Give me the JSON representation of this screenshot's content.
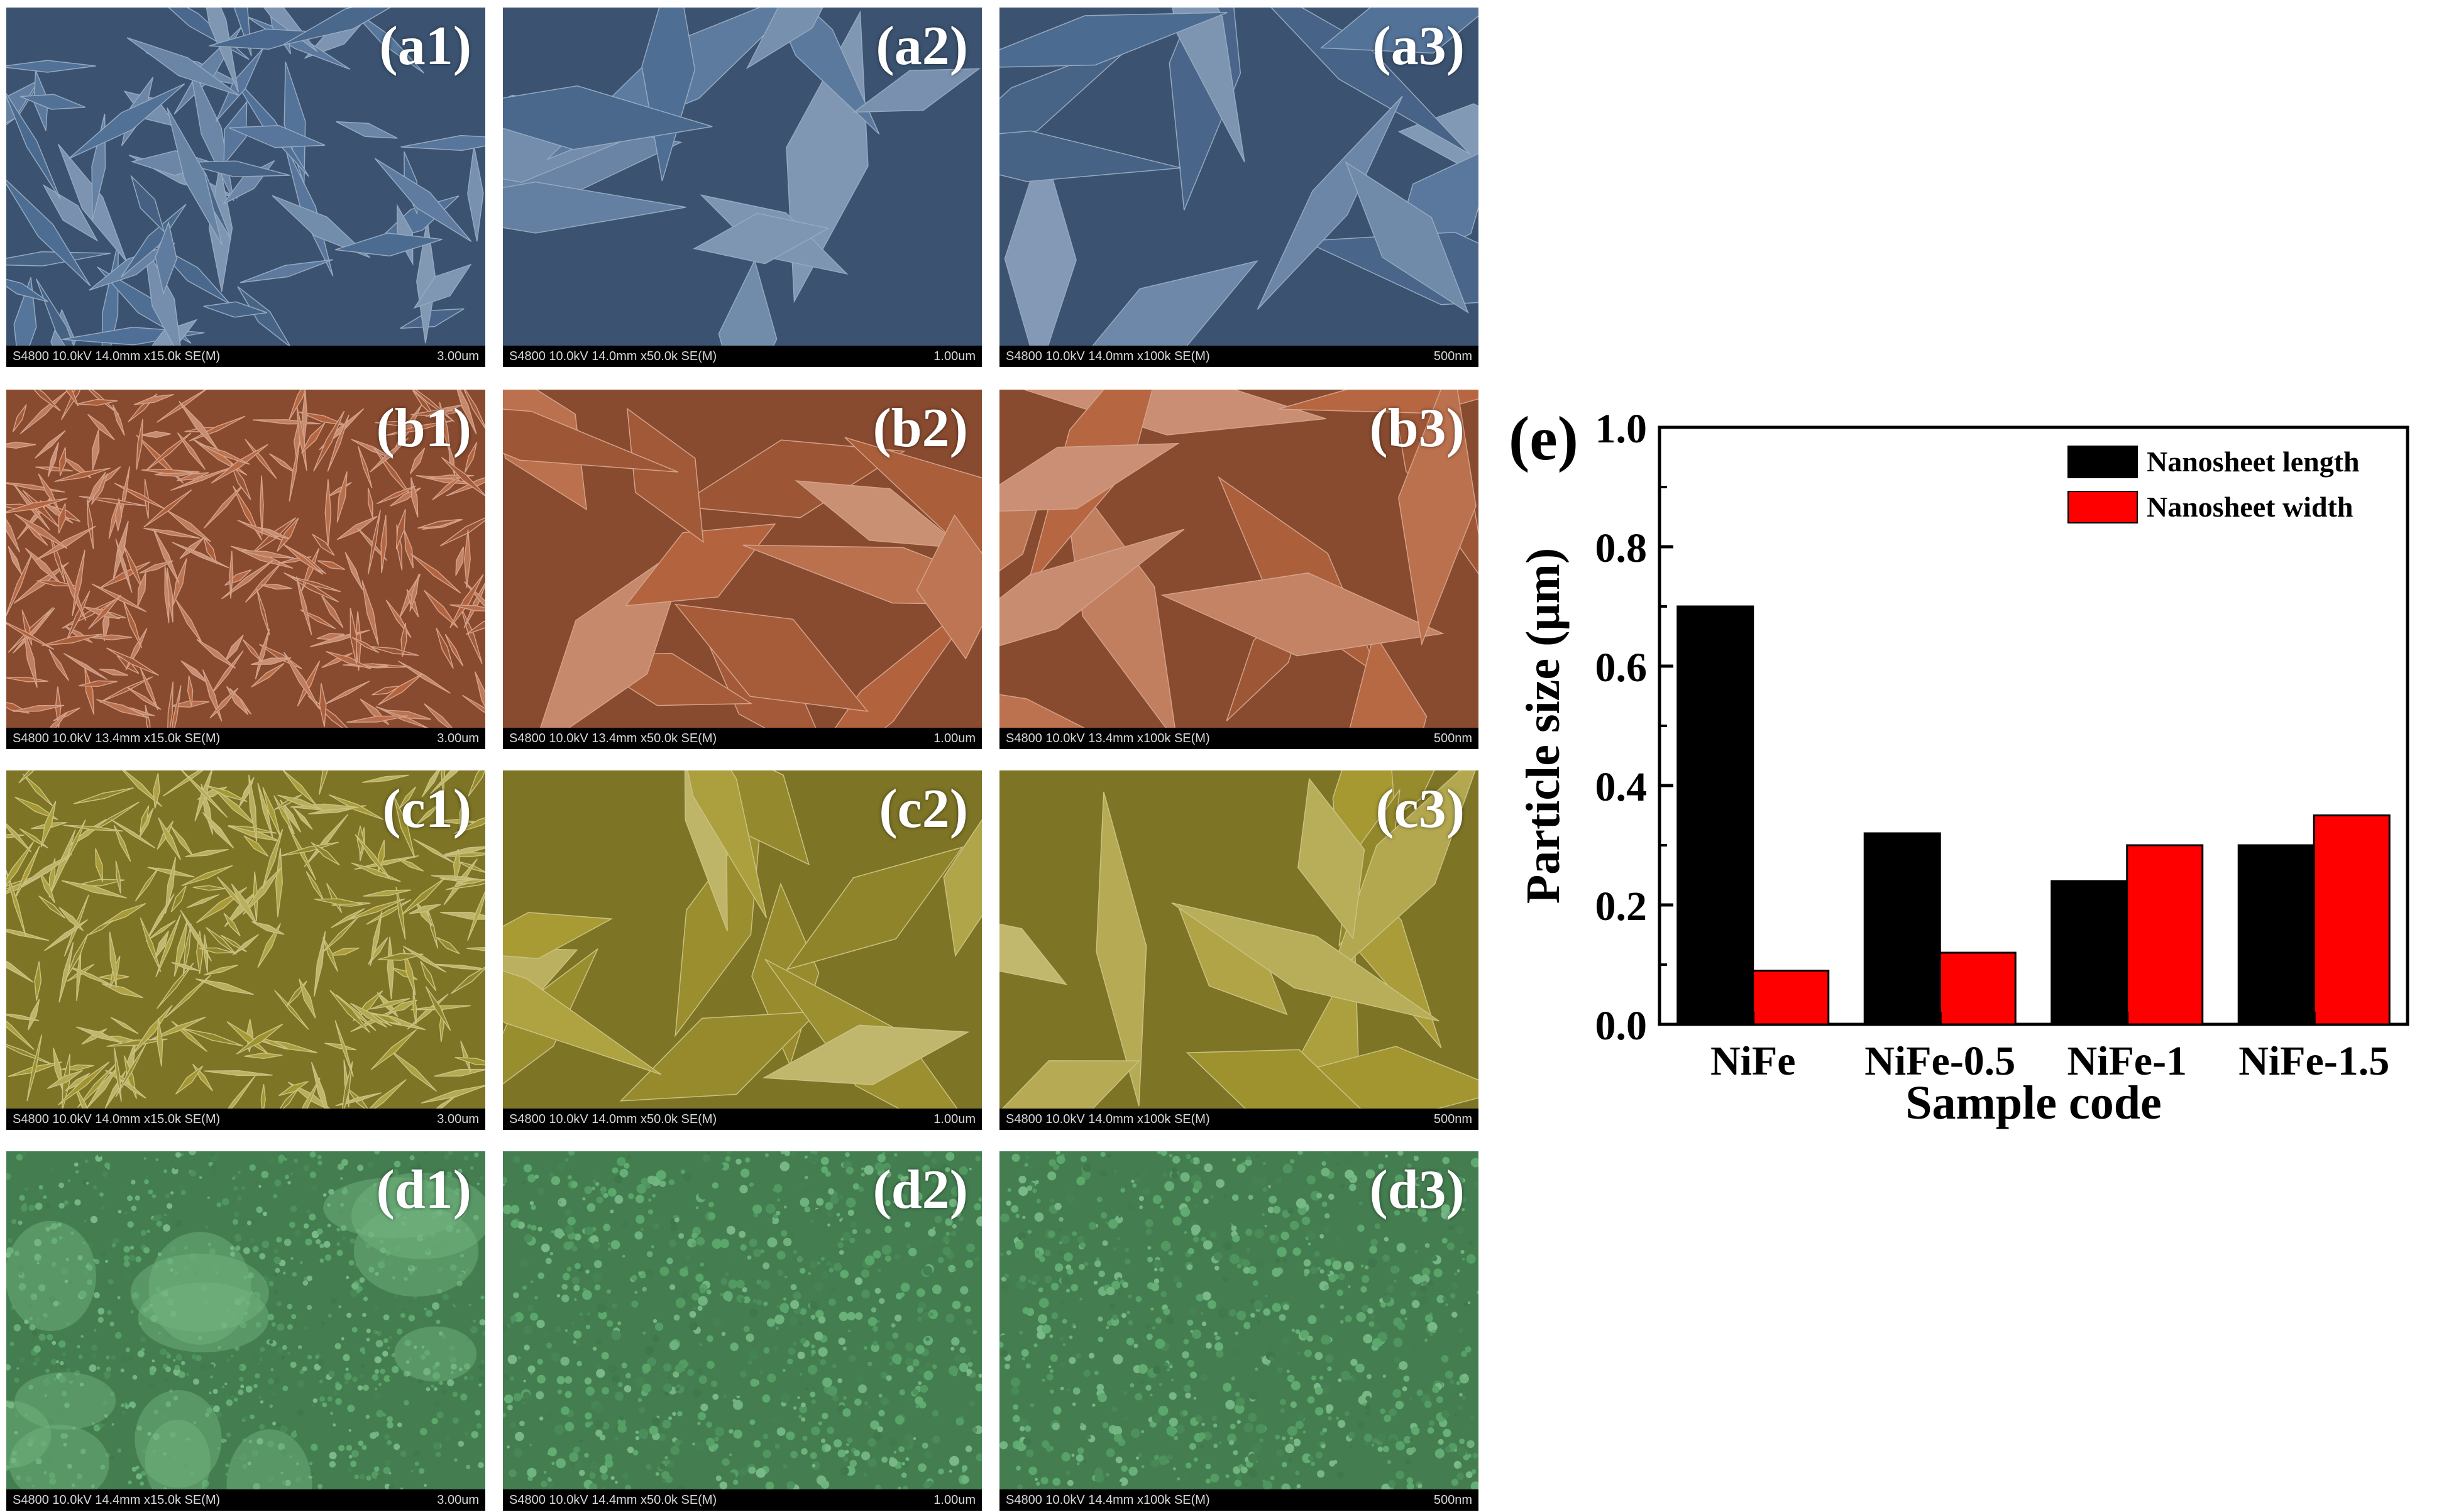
{
  "panels": [
    {
      "id": "a1",
      "label": "(a1)",
      "meta": "S4800 10.0kV 14.0mm x15.0k SE(M)",
      "scale": "3.00um",
      "color": "#4f6f96",
      "texture": "flakes-large"
    },
    {
      "id": "a2",
      "label": "(a2)",
      "meta": "S4800 10.0kV 14.0mm x50.0k SE(M)",
      "scale": "1.00um",
      "color": "#4f6f96",
      "texture": "flakes-zoom"
    },
    {
      "id": "a3",
      "label": "(a3)",
      "meta": "S4800 10.0kV 14.0mm x100k SE(M)",
      "scale": "500nm",
      "color": "#4f6f96",
      "texture": "flakes-zoom"
    },
    {
      "id": "b1",
      "label": "(b1)",
      "meta": "S4800 10.0kV 13.4mm x15.0k SE(M)",
      "scale": "3.00um",
      "color": "#b5643e",
      "texture": "needles"
    },
    {
      "id": "b2",
      "label": "(b2)",
      "meta": "S4800 10.0kV 13.4mm x50.0k SE(M)",
      "scale": "1.00um",
      "color": "#b5643e",
      "texture": "flakes-zoom"
    },
    {
      "id": "b3",
      "label": "(b3)",
      "meta": "S4800 10.0kV 13.4mm x100k SE(M)",
      "scale": "500nm",
      "color": "#b5643e",
      "texture": "flakes-zoom"
    },
    {
      "id": "c1",
      "label": "(c1)",
      "meta": "S4800 10.0kV 14.0mm x15.0k SE(M)",
      "scale": "3.00um",
      "color": "#a79a32",
      "texture": "needles"
    },
    {
      "id": "c2",
      "label": "(c2)",
      "meta": "S4800 10.0kV 14.0mm x50.0k SE(M)",
      "scale": "1.00um",
      "color": "#a79a32",
      "texture": "flakes-zoom"
    },
    {
      "id": "c3",
      "label": "(c3)",
      "meta": "S4800 10.0kV 14.0mm x100k SE(M)",
      "scale": "500nm",
      "color": "#a79a32",
      "texture": "flakes-zoom"
    },
    {
      "id": "d1",
      "label": "(d1)",
      "meta": "S4800 10.0kV 14.4mm x15.0k SE(M)",
      "scale": "3.00um",
      "color": "#5aa86b",
      "texture": "grains"
    },
    {
      "id": "d2",
      "label": "(d2)",
      "meta": "S4800 10.0kV 14.4mm x50.0k SE(M)",
      "scale": "1.00um",
      "color": "#5aa86b",
      "texture": "grains"
    },
    {
      "id": "d3",
      "label": "(d3)",
      "meta": "S4800 10.0kV 14.4mm x100k SE(M)",
      "scale": "500nm",
      "color": "#5aa86b",
      "texture": "grains"
    }
  ],
  "chart_label": "(e)",
  "chart_data": {
    "type": "bar",
    "categories": [
      "NiFe",
      "NiFe-0.5",
      "NiFe-1",
      "NiFe-1.5"
    ],
    "series": [
      {
        "name": "Nanosheet length",
        "values": [
          0.7,
          0.32,
          0.24,
          0.3
        ],
        "color": "#000000"
      },
      {
        "name": "Nanosheet width",
        "values": [
          0.09,
          0.12,
          0.3,
          0.35
        ],
        "color": "#ff0000"
      }
    ],
    "title": "",
    "xlabel": "Sample code",
    "ylabel": "Particle size (μm)",
    "ylim": [
      0.0,
      1.0
    ],
    "yticks": [
      "0.0",
      "0.2",
      "0.4",
      "0.6",
      "0.8",
      "1.0"
    ],
    "grid": false,
    "legend": "top-right"
  }
}
